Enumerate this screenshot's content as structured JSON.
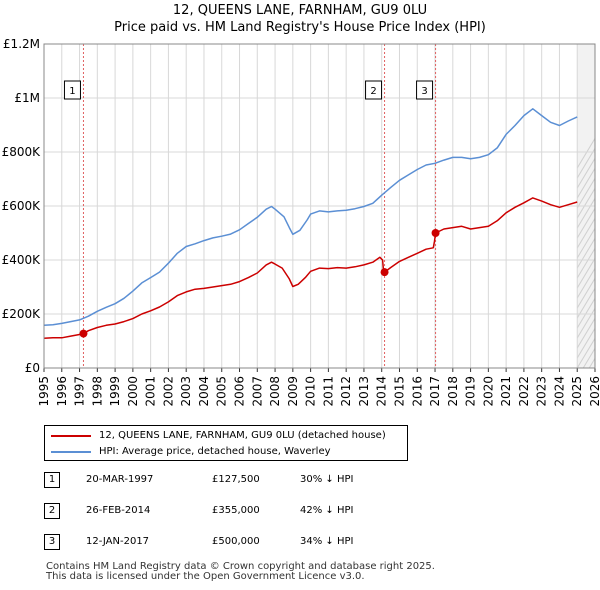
{
  "chart_data": {
    "type": "line",
    "title": "12, QUEENS LANE, FARNHAM, GU9 0LU",
    "subtitle": "Price paid vs. HM Land Registry's House Price Index (HPI)",
    "x_range": [
      1995,
      2026
    ],
    "y_range": [
      0,
      1200000
    ],
    "y_ticks": [
      {
        "value": 0,
        "label": "£0"
      },
      {
        "value": 200000,
        "label": "£200K"
      },
      {
        "value": 400000,
        "label": "£400K"
      },
      {
        "value": 600000,
        "label": "£600K"
      },
      {
        "value": 800000,
        "label": "£800K"
      },
      {
        "value": 1000000,
        "label": "£1M"
      },
      {
        "value": 1200000,
        "label": "£1.2M"
      }
    ],
    "x_ticks": [
      "1995",
      "1996",
      "1997",
      "1998",
      "1999",
      "2000",
      "2001",
      "2002",
      "2003",
      "2004",
      "2005",
      "2006",
      "2007",
      "2008",
      "2009",
      "2010",
      "2011",
      "2012",
      "2013",
      "2014",
      "2015",
      "2016",
      "2017",
      "2018",
      "2019",
      "2020",
      "2021",
      "2022",
      "2023",
      "2024",
      "2025",
      "2026"
    ],
    "series": [
      {
        "name": "12, QUEENS LANE, FARNHAM, GU9 0LU (detached house)",
        "color": "#cc0000",
        "points": [
          [
            1995.0,
            110000
          ],
          [
            1995.5,
            112000
          ],
          [
            1996.0,
            112000
          ],
          [
            1996.5,
            118000
          ],
          [
            1997.0,
            124000
          ],
          [
            1997.22,
            127500
          ],
          [
            1997.5,
            138000
          ],
          [
            1998.0,
            150000
          ],
          [
            1998.5,
            158000
          ],
          [
            1999.0,
            163000
          ],
          [
            1999.5,
            172000
          ],
          [
            2000.0,
            183000
          ],
          [
            2000.5,
            200000
          ],
          [
            2001.0,
            212000
          ],
          [
            2001.5,
            226000
          ],
          [
            2002.0,
            245000
          ],
          [
            2002.5,
            268000
          ],
          [
            2003.0,
            282000
          ],
          [
            2003.5,
            292000
          ],
          [
            2004.0,
            295000
          ],
          [
            2004.5,
            300000
          ],
          [
            2005.0,
            305000
          ],
          [
            2005.5,
            310000
          ],
          [
            2006.0,
            320000
          ],
          [
            2006.5,
            335000
          ],
          [
            2007.0,
            352000
          ],
          [
            2007.5,
            382000
          ],
          [
            2007.8,
            392000
          ],
          [
            2008.0,
            385000
          ],
          [
            2008.4,
            370000
          ],
          [
            2008.8,
            330000
          ],
          [
            2009.0,
            302000
          ],
          [
            2009.3,
            310000
          ],
          [
            2009.7,
            335000
          ],
          [
            2010.0,
            358000
          ],
          [
            2010.5,
            370000
          ],
          [
            2011.0,
            368000
          ],
          [
            2011.5,
            372000
          ],
          [
            2012.0,
            370000
          ],
          [
            2012.5,
            375000
          ],
          [
            2013.0,
            382000
          ],
          [
            2013.5,
            392000
          ],
          [
            2013.9,
            410000
          ],
          [
            2014.05,
            400000
          ],
          [
            2014.1,
            360000
          ],
          [
            2014.16,
            355000
          ],
          [
            2014.5,
            372000
          ],
          [
            2015.0,
            395000
          ],
          [
            2015.5,
            410000
          ],
          [
            2016.0,
            425000
          ],
          [
            2016.5,
            440000
          ],
          [
            2016.9,
            445000
          ],
          [
            2016.97,
            470000
          ],
          [
            2017.03,
            500000
          ],
          [
            2017.5,
            515000
          ],
          [
            2018.0,
            520000
          ],
          [
            2018.5,
            525000
          ],
          [
            2019.0,
            515000
          ],
          [
            2019.5,
            520000
          ],
          [
            2020.0,
            525000
          ],
          [
            2020.5,
            545000
          ],
          [
            2021.0,
            575000
          ],
          [
            2021.5,
            595000
          ],
          [
            2022.0,
            612000
          ],
          [
            2022.5,
            630000
          ],
          [
            2023.0,
            618000
          ],
          [
            2023.5,
            605000
          ],
          [
            2024.0,
            595000
          ],
          [
            2024.5,
            605000
          ],
          [
            2025.0,
            615000
          ]
        ]
      },
      {
        "name": "HPI: Average price, detached house, Waverley",
        "color": "#5b8fd4",
        "points": [
          [
            1995.0,
            158000
          ],
          [
            1995.5,
            160000
          ],
          [
            1996.0,
            165000
          ],
          [
            1996.5,
            172000
          ],
          [
            1997.0,
            178000
          ],
          [
            1997.5,
            192000
          ],
          [
            1998.0,
            210000
          ],
          [
            1998.5,
            225000
          ],
          [
            1999.0,
            238000
          ],
          [
            1999.5,
            258000
          ],
          [
            2000.0,
            285000
          ],
          [
            2000.5,
            315000
          ],
          [
            2001.0,
            335000
          ],
          [
            2001.5,
            355000
          ],
          [
            2002.0,
            388000
          ],
          [
            2002.5,
            425000
          ],
          [
            2003.0,
            450000
          ],
          [
            2003.5,
            460000
          ],
          [
            2004.0,
            472000
          ],
          [
            2004.5,
            482000
          ],
          [
            2005.0,
            488000
          ],
          [
            2005.5,
            496000
          ],
          [
            2006.0,
            512000
          ],
          [
            2006.5,
            535000
          ],
          [
            2007.0,
            558000
          ],
          [
            2007.5,
            588000
          ],
          [
            2007.8,
            598000
          ],
          [
            2008.0,
            588000
          ],
          [
            2008.5,
            560000
          ],
          [
            2008.8,
            520000
          ],
          [
            2009.0,
            495000
          ],
          [
            2009.4,
            510000
          ],
          [
            2009.8,
            548000
          ],
          [
            2010.0,
            570000
          ],
          [
            2010.5,
            582000
          ],
          [
            2011.0,
            578000
          ],
          [
            2011.5,
            582000
          ],
          [
            2012.0,
            584000
          ],
          [
            2012.5,
            590000
          ],
          [
            2013.0,
            598000
          ],
          [
            2013.5,
            610000
          ],
          [
            2014.0,
            640000
          ],
          [
            2014.5,
            668000
          ],
          [
            2015.0,
            695000
          ],
          [
            2015.5,
            715000
          ],
          [
            2016.0,
            735000
          ],
          [
            2016.5,
            752000
          ],
          [
            2017.0,
            758000
          ],
          [
            2017.5,
            770000
          ],
          [
            2018.0,
            780000
          ],
          [
            2018.5,
            780000
          ],
          [
            2019.0,
            775000
          ],
          [
            2019.5,
            780000
          ],
          [
            2020.0,
            790000
          ],
          [
            2020.5,
            815000
          ],
          [
            2021.0,
            865000
          ],
          [
            2021.5,
            898000
          ],
          [
            2022.0,
            935000
          ],
          [
            2022.5,
            960000
          ],
          [
            2023.0,
            935000
          ],
          [
            2023.5,
            910000
          ],
          [
            2024.0,
            898000
          ],
          [
            2024.5,
            915000
          ],
          [
            2025.0,
            930000
          ]
        ]
      }
    ],
    "sales": [
      {
        "n": "1",
        "x": 1997.22,
        "value": 127500
      },
      {
        "n": "2",
        "x": 2014.16,
        "value": 355000
      },
      {
        "n": "3",
        "x": 2017.03,
        "value": 500000
      }
    ]
  },
  "legend": {
    "items": [
      {
        "label": "12, QUEENS LANE, FARNHAM, GU9 0LU (detached house)",
        "color": "#cc0000"
      },
      {
        "label": "HPI: Average price, detached house, Waverley",
        "color": "#5b8fd4"
      }
    ]
  },
  "transactions": [
    {
      "n": "1",
      "date": "20-MAR-1997",
      "price": "£127,500",
      "hpi": "30% ↓ HPI"
    },
    {
      "n": "2",
      "date": "26-FEB-2014",
      "price": "£355,000",
      "hpi": "42% ↓ HPI"
    },
    {
      "n": "3",
      "date": "12-JAN-2017",
      "price": "£500,000",
      "hpi": "34% ↓ HPI"
    }
  ],
  "footer": {
    "line1": "Contains HM Land Registry data © Crown copyright and database right 2025.",
    "line2": "This data is licensed under the Open Government Licence v3.0."
  }
}
